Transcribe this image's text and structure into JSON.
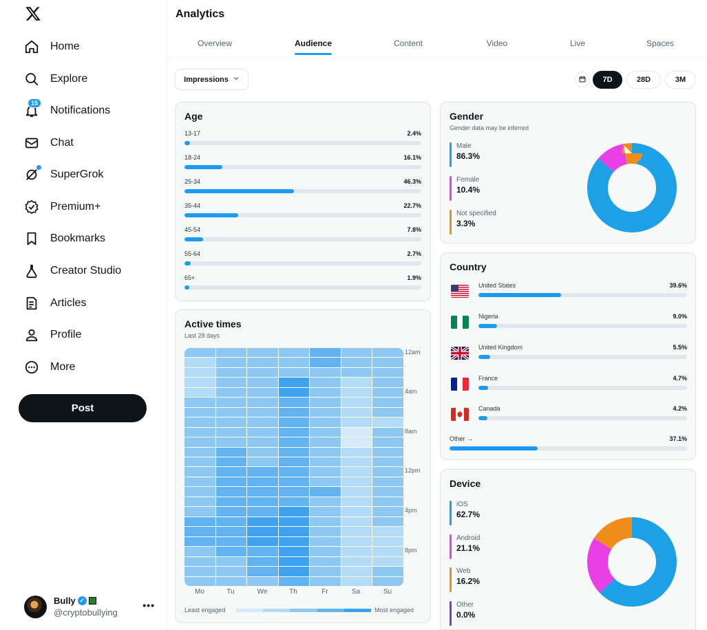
{
  "sidebar": {
    "items": [
      {
        "label": "Home",
        "icon": "home-icon"
      },
      {
        "label": "Explore",
        "icon": "search-icon"
      },
      {
        "label": "Notifications",
        "icon": "bell-icon",
        "badge": "15"
      },
      {
        "label": "Chat",
        "icon": "mail-icon"
      },
      {
        "label": "SuperGrok",
        "icon": "grok-icon"
      },
      {
        "label": "Premium+",
        "icon": "premium-icon"
      },
      {
        "label": "Bookmarks",
        "icon": "bookmark-icon"
      },
      {
        "label": "Creator Studio",
        "icon": "flask-icon"
      },
      {
        "label": "Articles",
        "icon": "article-icon"
      },
      {
        "label": "Profile",
        "icon": "person-icon"
      },
      {
        "label": "More",
        "icon": "more-circle-icon"
      }
    ],
    "post_label": "Post",
    "user": {
      "name": "Bully",
      "handle": "@cryptobullying"
    }
  },
  "header": {
    "title": "Analytics"
  },
  "tabs": [
    "Overview",
    "Audience",
    "Content",
    "Video",
    "Live",
    "Spaces"
  ],
  "active_tab": "Audience",
  "controls": {
    "metric": "Impressions",
    "ranges": [
      "7D",
      "28D",
      "3M"
    ],
    "active_range": "7D"
  },
  "age": {
    "title": "Age",
    "rows": [
      {
        "label": "13-17",
        "value": "2.4%",
        "pct": 2.4
      },
      {
        "label": "18-24",
        "value": "16.1%",
        "pct": 16.1
      },
      {
        "label": "25-34",
        "value": "46.3%",
        "pct": 46.3
      },
      {
        "label": "35-44",
        "value": "22.7%",
        "pct": 22.7
      },
      {
        "label": "45-54",
        "value": "7.8%",
        "pct": 7.8
      },
      {
        "label": "55-64",
        "value": "2.7%",
        "pct": 2.7
      },
      {
        "label": "65+",
        "value": "1.9%",
        "pct": 1.9
      }
    ]
  },
  "active_times": {
    "title": "Active times",
    "subtitle": "Last 28 days",
    "days": [
      "Mo",
      "Tu",
      "We",
      "Th",
      "Fr",
      "Sa",
      "Su"
    ],
    "hours": [
      "12am",
      "4am",
      "8am",
      "12pm",
      "4pm",
      "8pm"
    ],
    "legend_low": "Least engaged",
    "legend_high": "Most engaged",
    "colors": [
      "#d6eafa",
      "#b3daf6",
      "#8dc8f3",
      "#62b3f0",
      "#3ea2ee",
      "#1d8fe6"
    ],
    "levels": [
      [
        2,
        2,
        2,
        2,
        3,
        2,
        2
      ],
      [
        1,
        2,
        2,
        2,
        3,
        2,
        2
      ],
      [
        1,
        2,
        2,
        2,
        2,
        2,
        2
      ],
      [
        1,
        2,
        2,
        4,
        2,
        1,
        2
      ],
      [
        1,
        2,
        2,
        4,
        2,
        1,
        2
      ],
      [
        2,
        2,
        2,
        3,
        2,
        1,
        2
      ],
      [
        2,
        2,
        2,
        3,
        2,
        1,
        2
      ],
      [
        2,
        2,
        2,
        3,
        2,
        1,
        1
      ],
      [
        2,
        2,
        2,
        3,
        2,
        0,
        2
      ],
      [
        2,
        2,
        2,
        3,
        2,
        0,
        2
      ],
      [
        2,
        3,
        2,
        3,
        2,
        1,
        2
      ],
      [
        2,
        3,
        2,
        3,
        2,
        1,
        2
      ],
      [
        2,
        3,
        3,
        3,
        2,
        1,
        2
      ],
      [
        2,
        3,
        3,
        3,
        2,
        1,
        2
      ],
      [
        2,
        3,
        3,
        3,
        3,
        1,
        2
      ],
      [
        2,
        3,
        3,
        3,
        2,
        1,
        2
      ],
      [
        2,
        3,
        3,
        4,
        2,
        1,
        2
      ],
      [
        3,
        3,
        4,
        4,
        2,
        1,
        2
      ],
      [
        3,
        3,
        4,
        4,
        2,
        1,
        1
      ],
      [
        3,
        3,
        4,
        4,
        2,
        1,
        1
      ],
      [
        2,
        3,
        3,
        4,
        2,
        1,
        1
      ],
      [
        2,
        2,
        3,
        4,
        2,
        1,
        1
      ],
      [
        2,
        2,
        3,
        4,
        2,
        1,
        2
      ],
      [
        2,
        2,
        2,
        3,
        2,
        1,
        2
      ]
    ]
  },
  "gender": {
    "title": "Gender",
    "subtitle": "Gender data may be inferred",
    "segments": [
      {
        "label": "Male",
        "value": "86.3%",
        "pct": 86.3,
        "color": "#1da1e6"
      },
      {
        "label": "Female",
        "value": "10.4%",
        "pct": 10.4,
        "color": "#e940e6"
      },
      {
        "label": "Not specified",
        "value": "3.3%",
        "pct": 3.3,
        "color": "#f08c1a"
      }
    ]
  },
  "country": {
    "title": "Country",
    "rows": [
      {
        "name": "United States",
        "value": "39.6%",
        "pct": 39.6,
        "flag": "us-flag-icon"
      },
      {
        "name": "Nigeria",
        "value": "9.0%",
        "pct": 9.0,
        "flag": "nigeria-flag-icon"
      },
      {
        "name": "United Kingdom",
        "value": "5.5%",
        "pct": 5.5,
        "flag": "uk-flag-icon"
      },
      {
        "name": "France",
        "value": "4.7%",
        "pct": 4.7,
        "flag": "france-flag-icon"
      },
      {
        "name": "Canada",
        "value": "4.2%",
        "pct": 4.2,
        "flag": "canada-flag-icon"
      }
    ],
    "other": {
      "label": "Other →",
      "value": "37.1%",
      "pct": 37.1
    }
  },
  "device": {
    "title": "Device",
    "segments": [
      {
        "label": "iOS",
        "value": "62.7%",
        "pct": 62.7,
        "color": "#1da1e6"
      },
      {
        "label": "Android",
        "value": "21.1%",
        "pct": 21.1,
        "color": "#e940e6"
      },
      {
        "label": "Web",
        "value": "16.2%",
        "pct": 16.2,
        "color": "#f08c1a"
      },
      {
        "label": "Other",
        "value": "0.0%",
        "pct": 0.0,
        "color": "#7a3bd1"
      }
    ]
  }
}
